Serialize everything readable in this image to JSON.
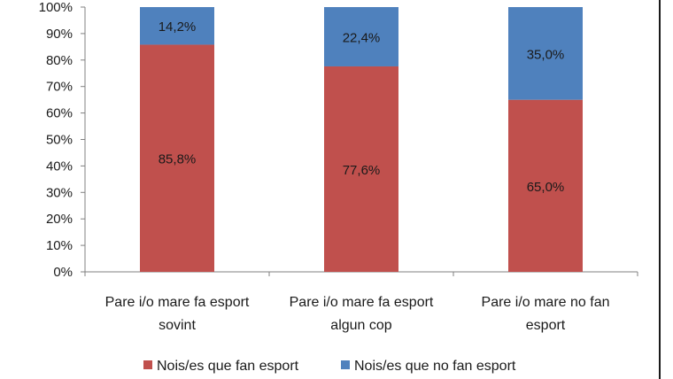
{
  "chart_data": {
    "type": "bar",
    "stacked": true,
    "categories": [
      [
        "Pare i/o mare fa esport",
        "sovint"
      ],
      [
        "Pare i/o mare fa esport",
        "algun cop"
      ],
      [
        "Pare i/o mare no fan",
        "esport"
      ]
    ],
    "series": [
      {
        "name": "Nois/es que fan esport",
        "color": "#c0504d",
        "values": [
          85.8,
          77.6,
          65.0
        ],
        "labels": [
          "85,8%",
          "77,6%",
          "65,0%"
        ]
      },
      {
        "name": "Nois/es que no fan esport",
        "color": "#4f81bd",
        "values": [
          14.2,
          22.4,
          35.0
        ],
        "labels": [
          "14,2%",
          "22,4%",
          "35,0%"
        ]
      }
    ],
    "ylim": [
      0,
      100
    ],
    "yticks": [
      "0%",
      "10%",
      "20%",
      "30%",
      "40%",
      "50%",
      "60%",
      "70%",
      "80%",
      "90%",
      "100%"
    ],
    "legend_position": "bottom",
    "grid": false
  }
}
